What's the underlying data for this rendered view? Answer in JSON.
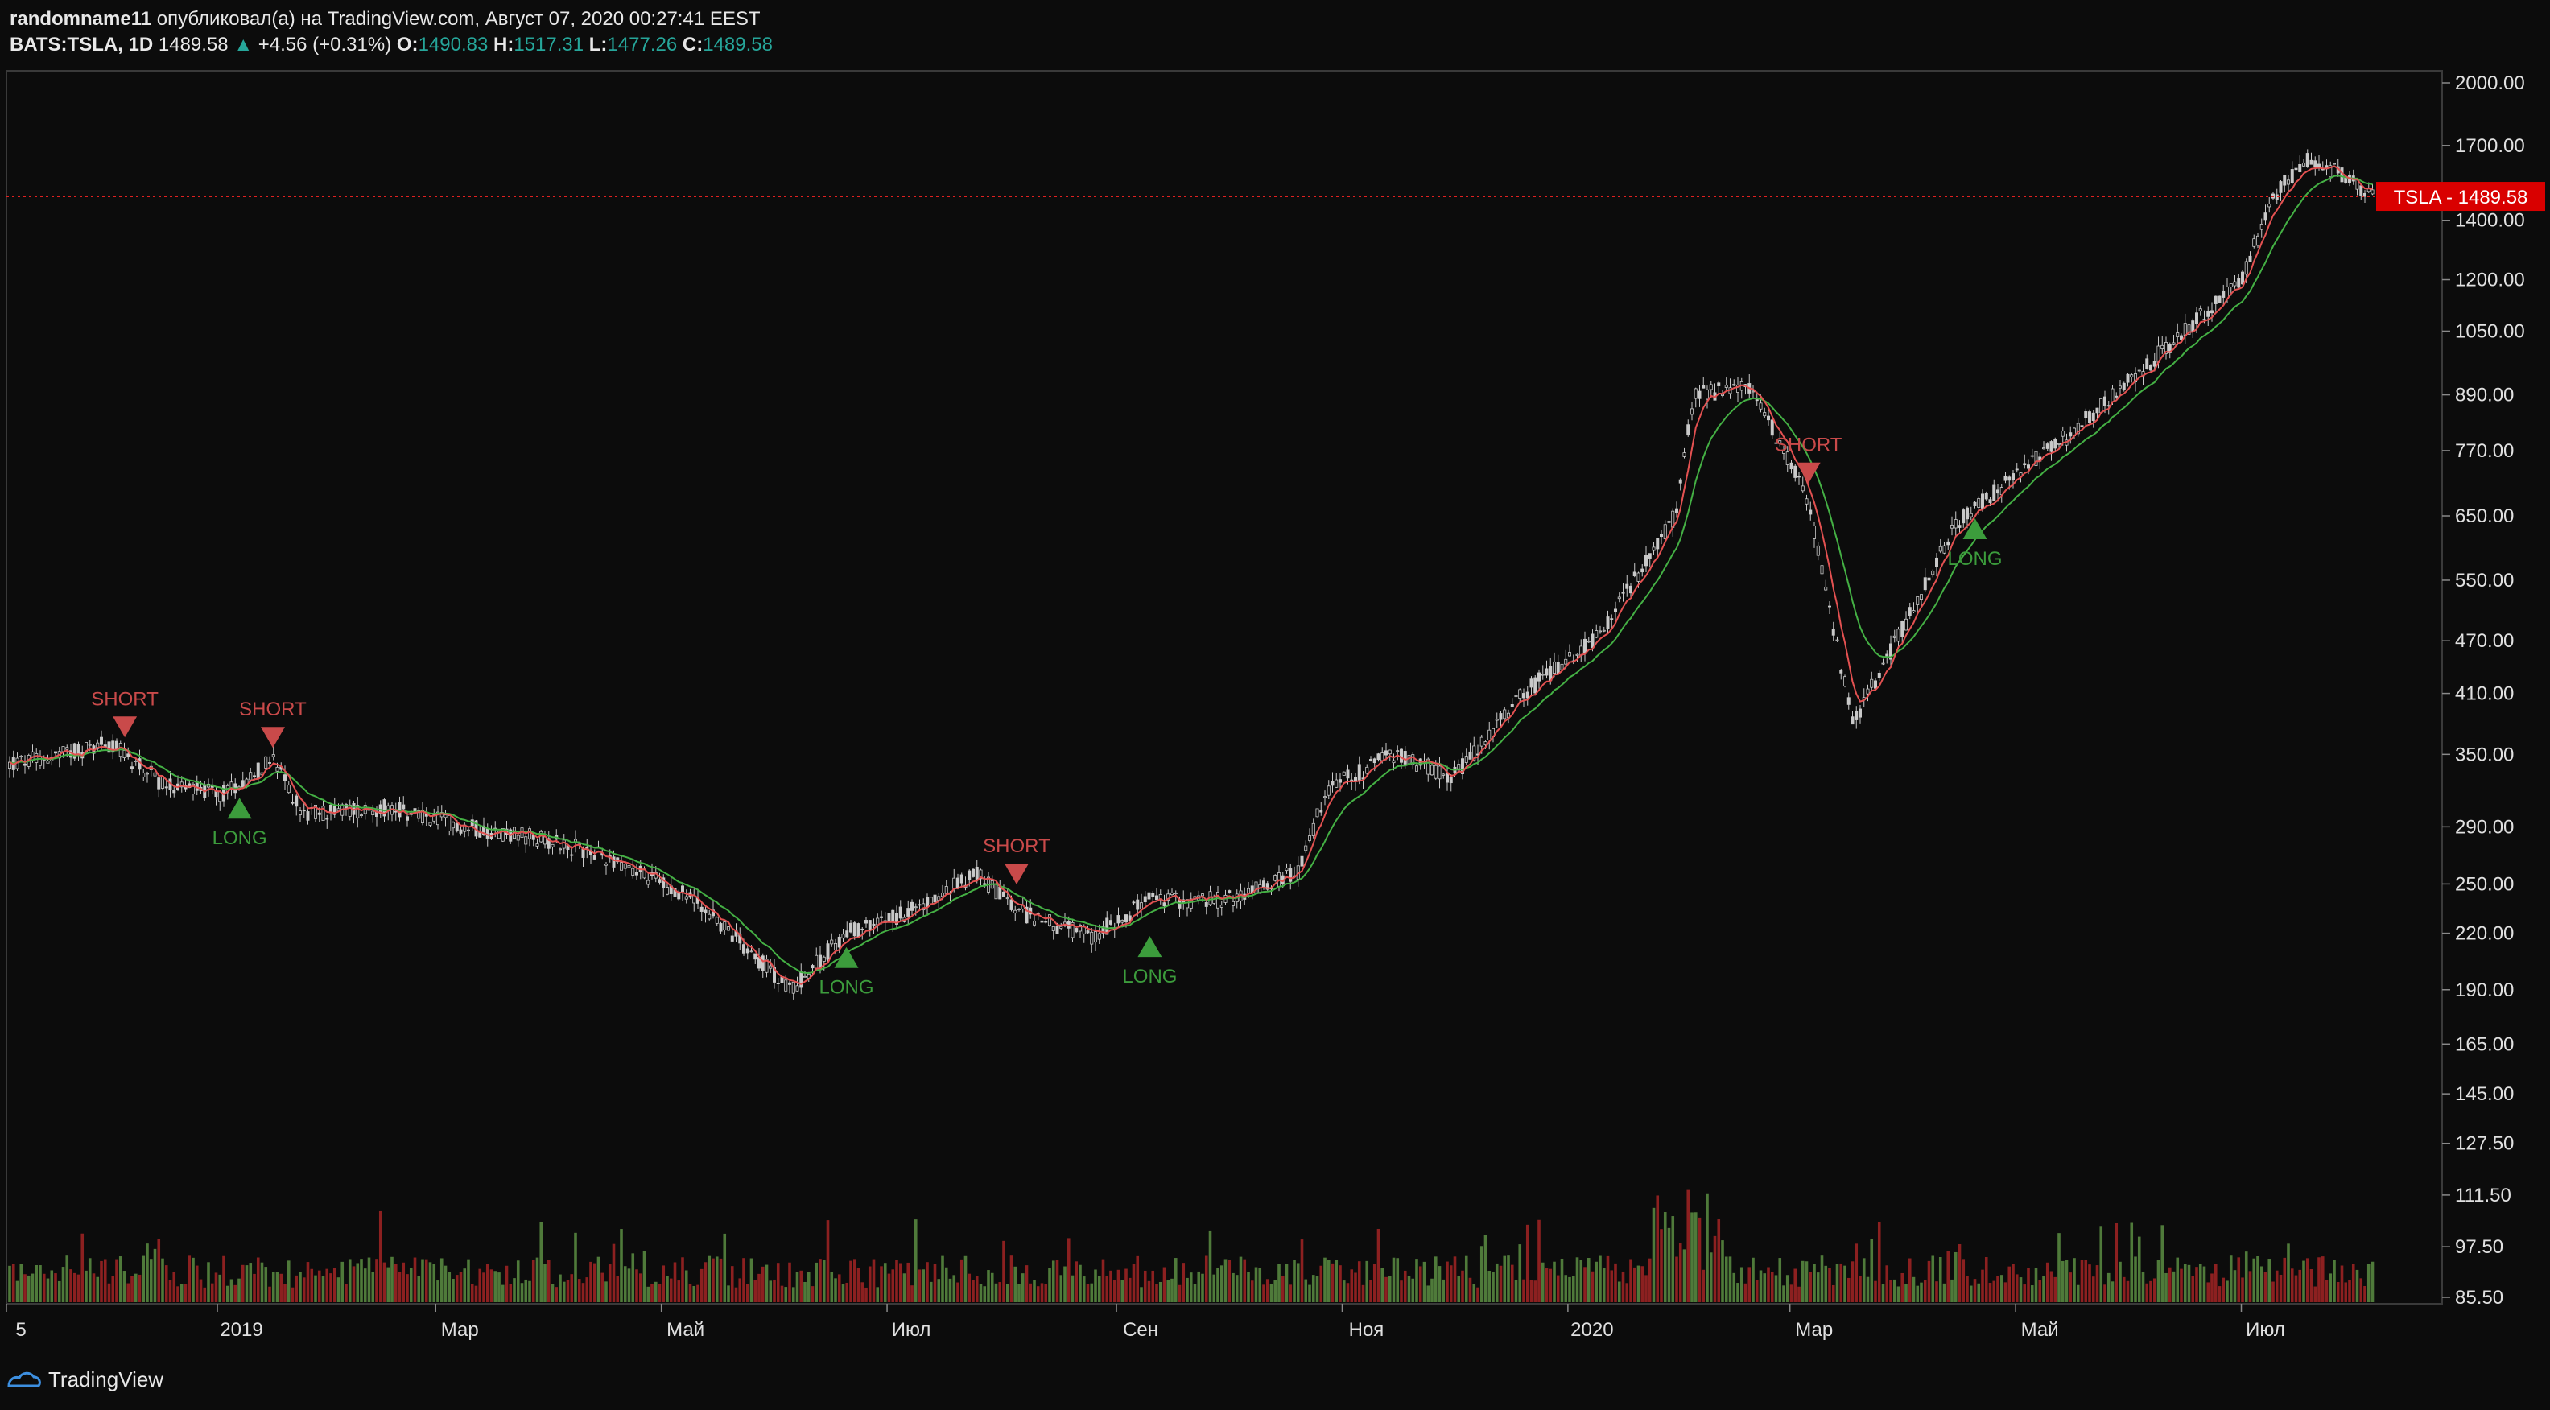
{
  "header": {
    "author": "randomname11",
    "published_text": "опубликовал(а) на TradingView.com, Август 07, 2020 00:27:41 EEST",
    "symbol": "BATS:TSLA, 1D",
    "last": "1489.58",
    "change_arrow": "▲",
    "change": "+4.56 (+0.31%)",
    "o_label": "O:",
    "o_value": "1490.83",
    "h_label": "H:",
    "h_value": "1517.31",
    "l_label": "L:",
    "l_value": "1477.26",
    "c_label": "C:",
    "c_value": "1489.58"
  },
  "footer": {
    "brand": "TradingView",
    "logo_icon": "tradingview-logo-icon"
  },
  "colors": {
    "background": "#0c0c0c",
    "up_candle": "#c9c9c9",
    "fast_ma": "#e35151",
    "slow_ma": "#44b044",
    "short_signal": "#c94a4a",
    "long_signal": "#3c9c3c",
    "volume_up": "#4f7a3a",
    "volume_down": "#8c2020",
    "price_line": "#e02020",
    "price_label_bg": "#d90000"
  },
  "chart_data": {
    "type": "candlestick",
    "y_scale": "log",
    "ylim": [
      85.5,
      2000
    ],
    "y_ticks": [
      "2000.00",
      "1700.00",
      "1400.00",
      "1200.00",
      "1050.00",
      "890.00",
      "770.00",
      "650.00",
      "550.00",
      "470.00",
      "410.00",
      "350.00",
      "290.00",
      "250.00",
      "220.00",
      "190.00",
      "165.00",
      "145.00",
      "127.50",
      "111.50",
      "97.50",
      "85.50"
    ],
    "x_ticks": [
      "5",
      "2019",
      "Мар",
      "Май",
      "Июл",
      "Сен",
      "Ноя",
      "2020",
      "Мар",
      "Май",
      "Июл"
    ],
    "current_price": {
      "label": "TSLA - 1489.58",
      "value": 1489.58
    },
    "price_path": [
      {
        "date": "2018-11-05",
        "close": 340
      },
      {
        "date": "2018-12-03",
        "close": 360
      },
      {
        "date": "2018-12-17",
        "close": 325
      },
      {
        "date": "2019-01-02",
        "close": 315
      },
      {
        "date": "2019-01-16",
        "close": 345
      },
      {
        "date": "2019-01-24",
        "close": 300
      },
      {
        "date": "2019-02-15",
        "close": 305
      },
      {
        "date": "2019-03-10",
        "close": 290
      },
      {
        "date": "2019-04-01",
        "close": 280
      },
      {
        "date": "2019-04-20",
        "close": 265
      },
      {
        "date": "2019-05-10",
        "close": 240
      },
      {
        "date": "2019-05-25",
        "close": 210
      },
      {
        "date": "2019-06-05",
        "close": 190
      },
      {
        "date": "2019-06-20",
        "close": 220
      },
      {
        "date": "2019-07-10",
        "close": 235
      },
      {
        "date": "2019-07-25",
        "close": 258
      },
      {
        "date": "2019-08-05",
        "close": 233
      },
      {
        "date": "2019-08-25",
        "close": 218
      },
      {
        "date": "2019-09-10",
        "close": 240
      },
      {
        "date": "2019-10-01",
        "close": 240
      },
      {
        "date": "2019-10-20",
        "close": 258
      },
      {
        "date": "2019-10-28",
        "close": 320
      },
      {
        "date": "2019-11-15",
        "close": 350
      },
      {
        "date": "2019-12-01",
        "close": 330
      },
      {
        "date": "2019-12-20",
        "close": 410
      },
      {
        "date": "2020-01-10",
        "close": 480
      },
      {
        "date": "2020-01-30",
        "close": 650
      },
      {
        "date": "2020-02-04",
        "close": 890
      },
      {
        "date": "2020-02-19",
        "close": 910
      },
      {
        "date": "2020-03-05",
        "close": 700
      },
      {
        "date": "2020-03-18",
        "close": 380
      },
      {
        "date": "2020-04-01",
        "close": 490
      },
      {
        "date": "2020-04-15",
        "close": 640
      },
      {
        "date": "2020-05-15",
        "close": 800
      },
      {
        "date": "2020-06-10",
        "close": 1000
      },
      {
        "date": "2020-07-01",
        "close": 1200
      },
      {
        "date": "2020-07-10",
        "close": 1500
      },
      {
        "date": "2020-07-20",
        "close": 1650
      },
      {
        "date": "2020-08-06",
        "close": 1489.58
      }
    ],
    "signals": [
      {
        "type": "SHORT",
        "date": "2018-12-07",
        "price": 375
      },
      {
        "type": "SHORT",
        "date": "2019-01-16",
        "price": 365
      },
      {
        "type": "LONG",
        "date": "2019-01-07",
        "price": 305
      },
      {
        "type": "LONG",
        "date": "2019-06-20",
        "price": 207
      },
      {
        "type": "SHORT",
        "date": "2019-08-05",
        "price": 256
      },
      {
        "type": "LONG",
        "date": "2019-09-10",
        "price": 213
      },
      {
        "type": "SHORT",
        "date": "2020-03-06",
        "price": 725
      },
      {
        "type": "LONG",
        "date": "2020-04-20",
        "price": 630
      }
    ],
    "signal_labels": {
      "short": "SHORT",
      "long": "LONG"
    },
    "series": [
      {
        "name": "",
        "kind": "fast MA"
      },
      {
        "name": "",
        "kind": "slow MA"
      },
      {
        "name": "",
        "kind": "volume"
      }
    ]
  }
}
